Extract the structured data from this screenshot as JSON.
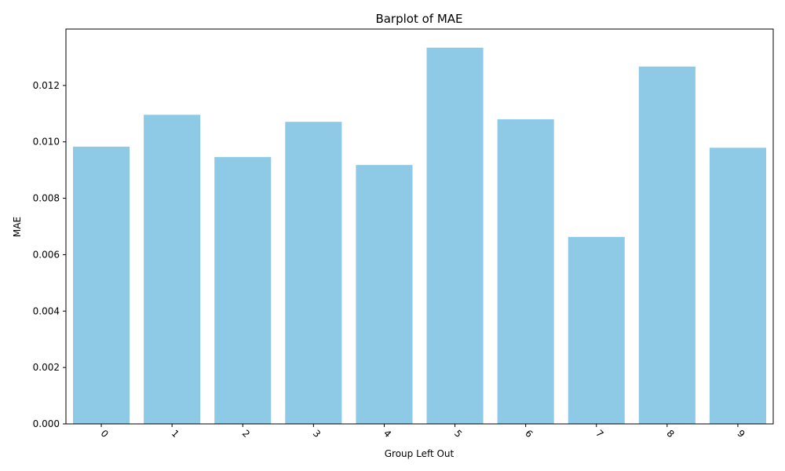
{
  "chart_data": {
    "type": "bar",
    "title": "Barplot of MAE",
    "xlabel": "Group Left Out",
    "ylabel": "MAE",
    "categories": [
      "0",
      "1",
      "2",
      "3",
      "4",
      "5",
      "6",
      "7",
      "8",
      "9"
    ],
    "values": [
      0.00983,
      0.01096,
      0.00946,
      0.01071,
      0.00918,
      0.01334,
      0.0108,
      0.00663,
      0.01267,
      0.00979
    ],
    "ylim": [
      0,
      0.014
    ],
    "yticks": [
      "0.000",
      "0.002",
      "0.004",
      "0.006",
      "0.008",
      "0.010",
      "0.012"
    ],
    "bar_color": "#8ecae6",
    "grid": false,
    "xtick_rotation_deg": 45
  }
}
